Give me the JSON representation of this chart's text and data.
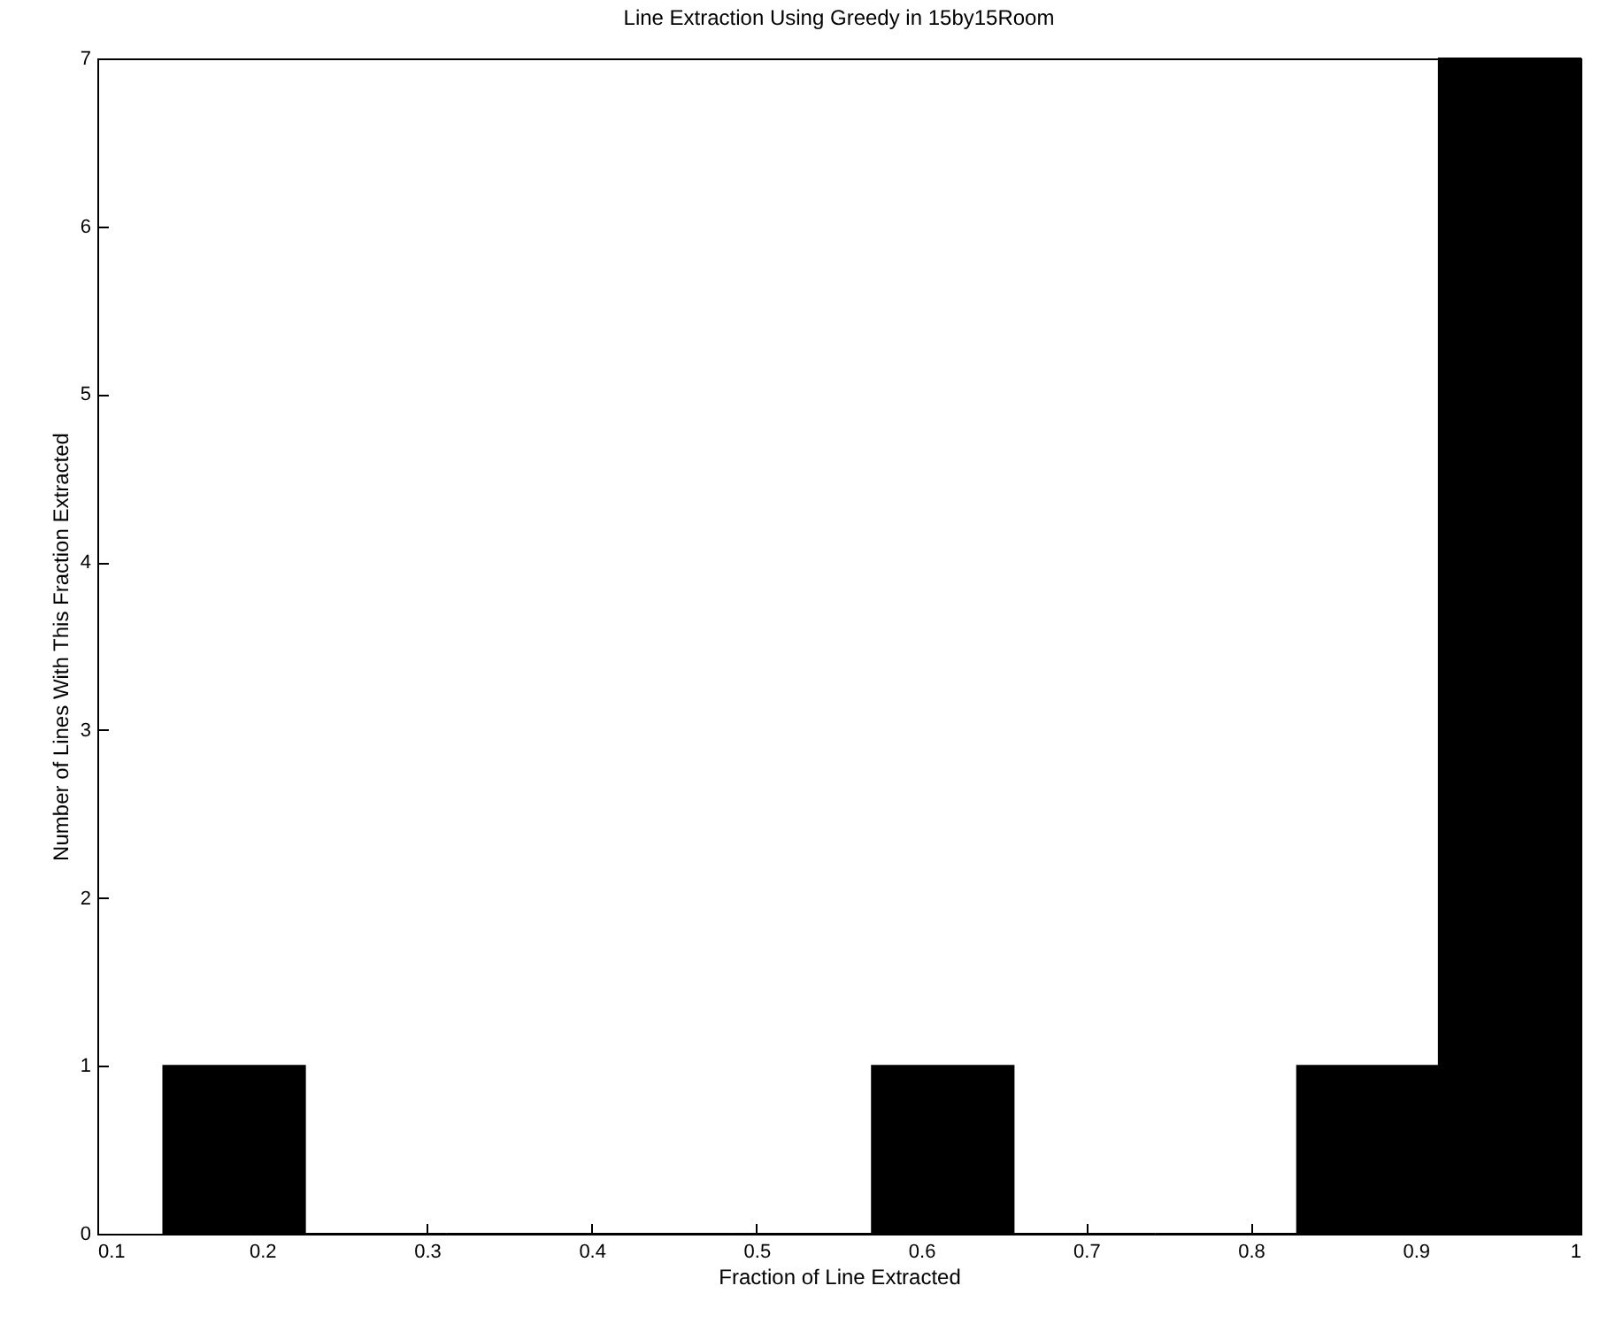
{
  "chart_data": {
    "type": "histogram",
    "title": "Line Extraction Using Greedy in 15by15Room",
    "xlabel": "Fraction of Line Extracted",
    "ylabel": "Number of Lines With This Fraction Extracted",
    "bins": [
      0.14,
      0.226,
      0.312,
      0.398,
      0.484,
      0.57,
      0.656,
      0.742,
      0.828,
      0.914,
      1.0
    ],
    "values": [
      1,
      0,
      0,
      0,
      0,
      1,
      0,
      0,
      1,
      7
    ],
    "color": "#000000",
    "xlim": [
      0.1,
      1
    ],
    "xticks": [
      0.1,
      0.2,
      0.3,
      0.4,
      0.5,
      0.6,
      0.7,
      0.8,
      0.9,
      1
    ],
    "ylim": [
      0,
      7
    ],
    "yticks": [
      0,
      1,
      2,
      3,
      4,
      5,
      6,
      7
    ],
    "grid": false
  }
}
